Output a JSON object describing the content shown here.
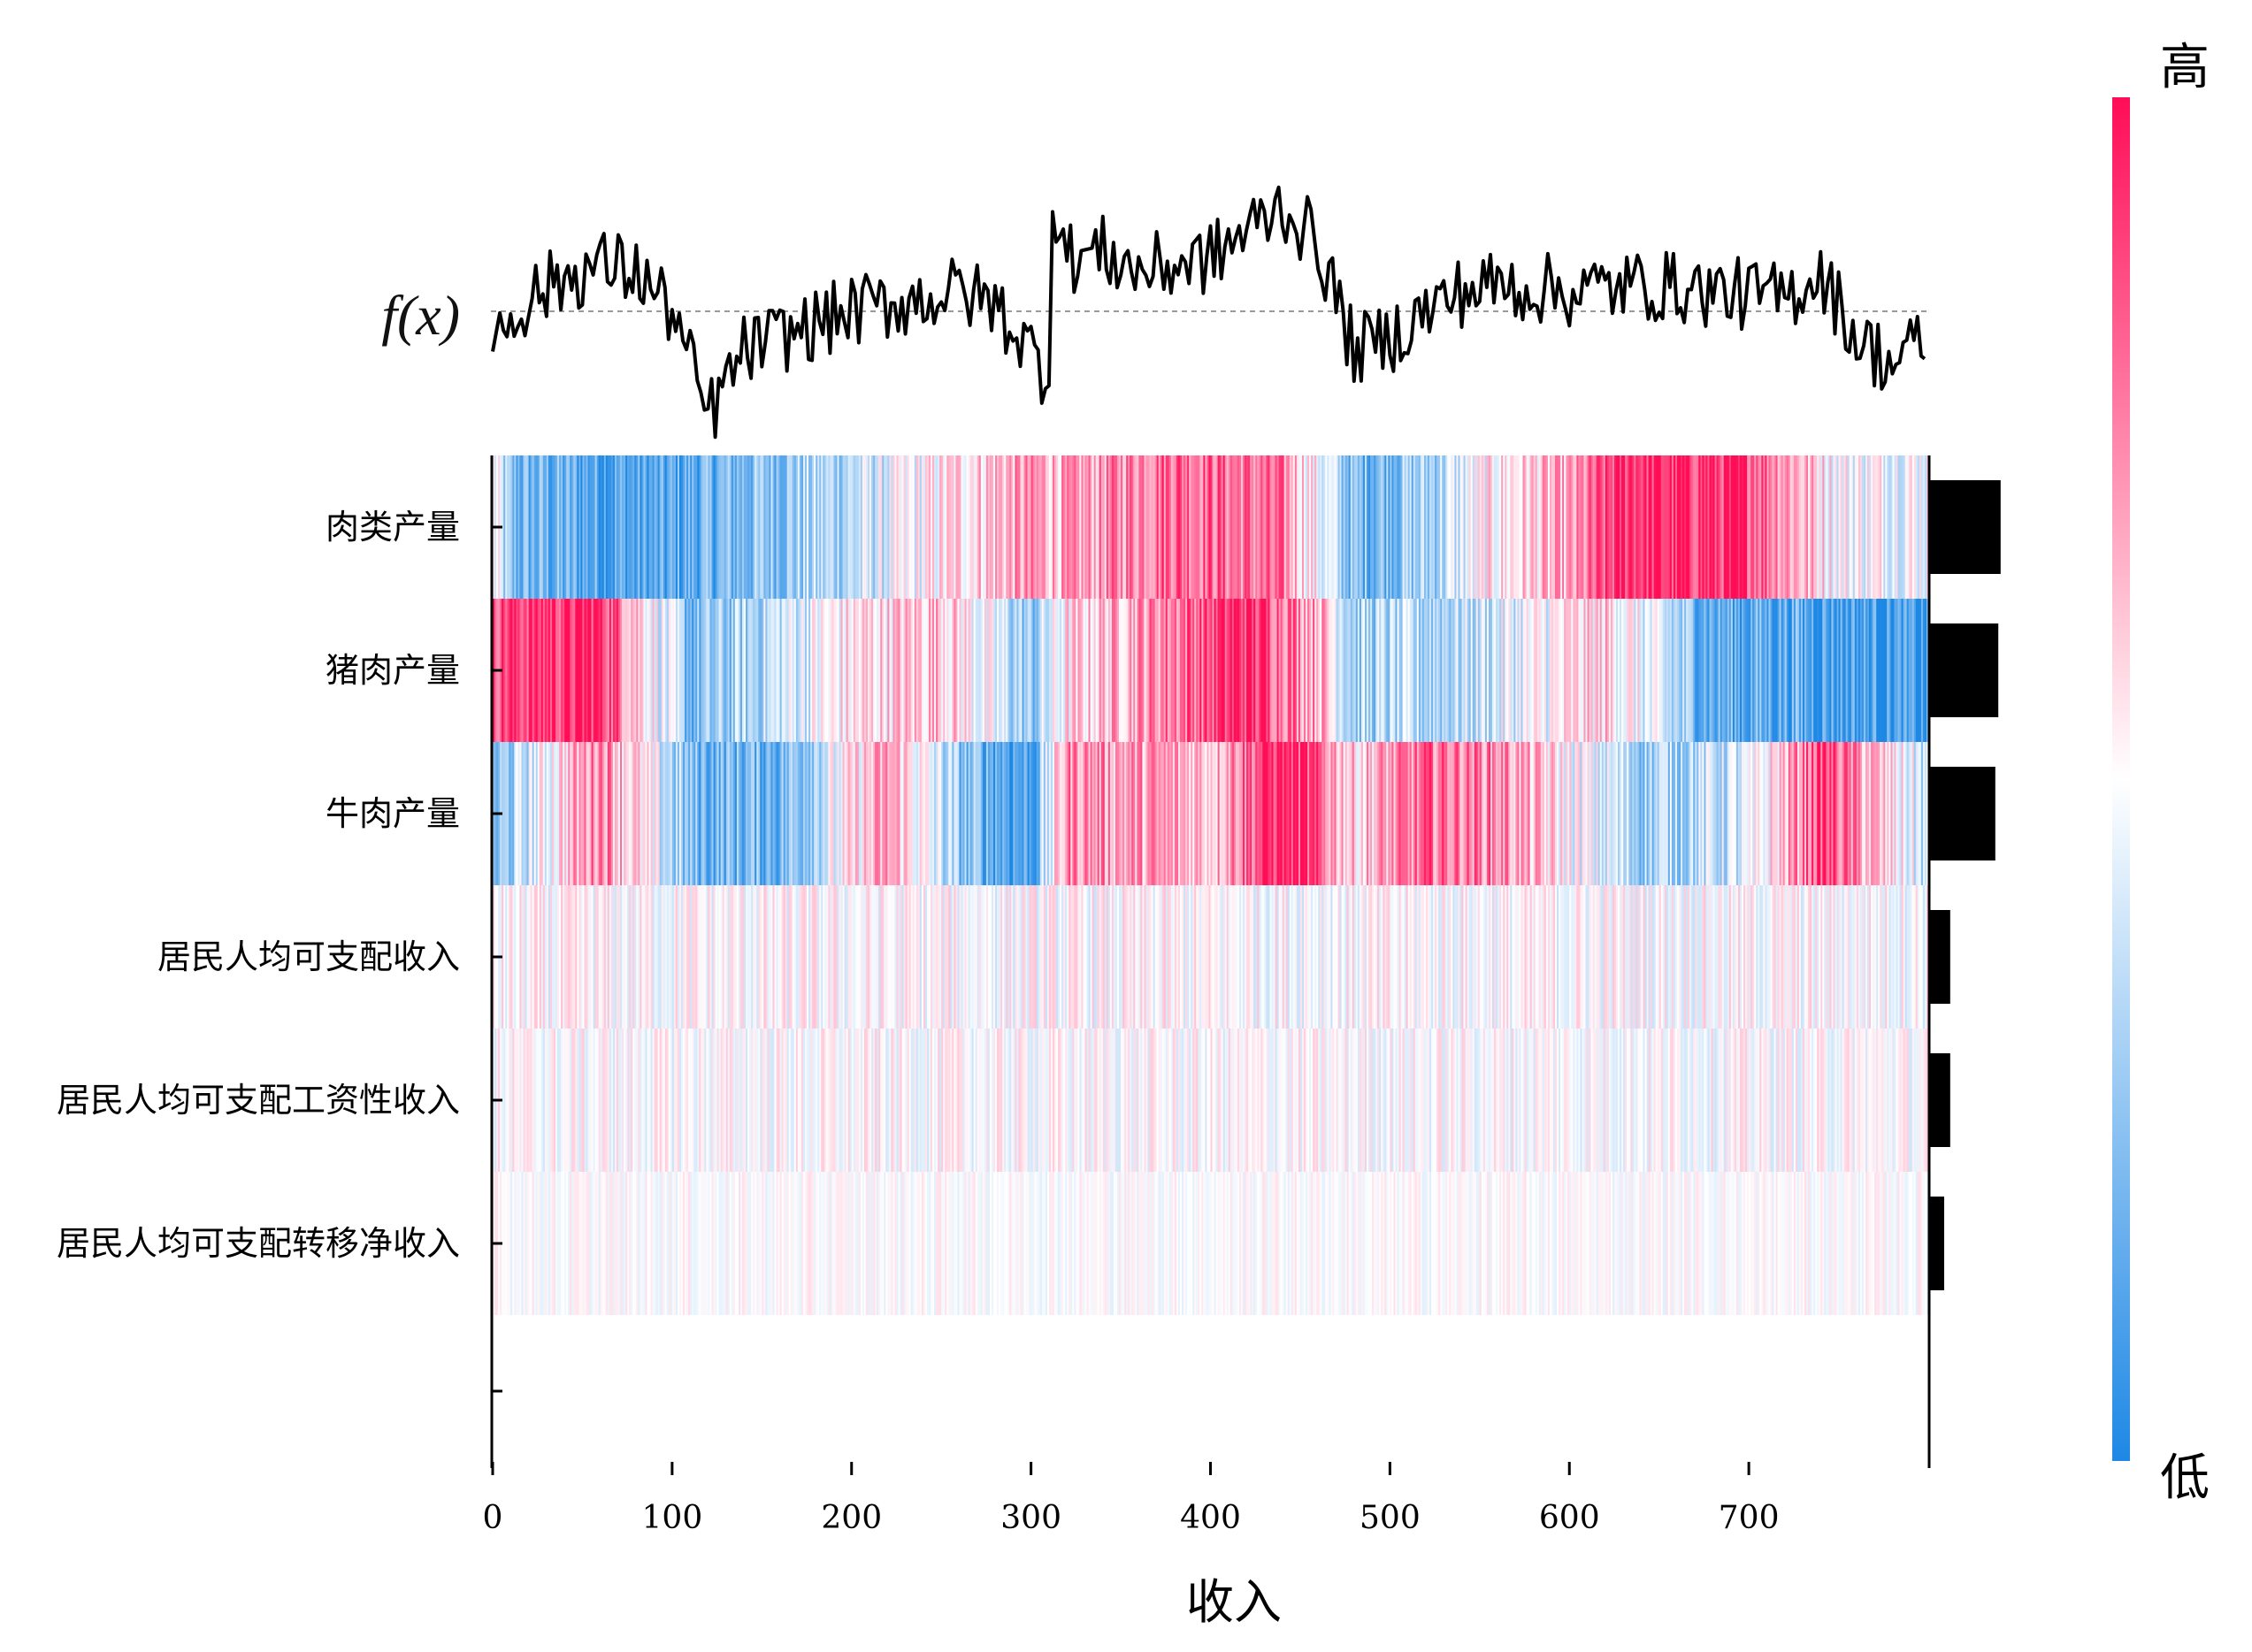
{
  "chart_data": {
    "type": "heatmap",
    "title": "",
    "xlabel": "收入",
    "ylabel": "",
    "output_label": "f(x)",
    "x_ticks": [
      0,
      100,
      200,
      300,
      400,
      500,
      600,
      700
    ],
    "xlim": [
      0,
      800
    ],
    "features": [
      "肉类产量",
      "猪肉产量",
      "牛肉产量",
      "居民人均可支配收入",
      "居民人均可支配工资性收入",
      "居民人均可支配转移净收入"
    ],
    "feature_importance": [
      0.95,
      0.92,
      0.88,
      0.28,
      0.28,
      0.2
    ],
    "colorbar": {
      "high_label": "高",
      "low_label": "低",
      "high_color": "#ff0d57",
      "mid_color": "#ffffff",
      "low_color": "#1e88e5"
    },
    "output_profile": {
      "x": [
        0,
        20,
        40,
        60,
        80,
        100,
        110,
        120,
        140,
        160,
        180,
        200,
        220,
        240,
        260,
        280,
        300,
        310,
        312,
        320,
        340,
        360,
        380,
        400,
        420,
        440,
        460,
        480,
        500,
        520,
        540,
        560,
        600,
        640,
        680,
        720,
        740,
        760,
        780,
        800
      ],
      "y": [
        -0.2,
        0.1,
        0.25,
        0.35,
        0.3,
        0.0,
        -0.4,
        -0.8,
        -0.3,
        -0.2,
        -0.1,
        0.0,
        0.05,
        0.1,
        0.15,
        0.05,
        -0.3,
        -0.5,
        0.9,
        0.4,
        0.45,
        0.3,
        0.35,
        0.4,
        0.6,
        0.8,
        0.5,
        -0.3,
        -0.2,
        0.0,
        0.15,
        0.2,
        0.15,
        0.2,
        0.15,
        0.1,
        0.3,
        -0.2,
        -0.4,
        -0.2
      ],
      "baseline": 0.0
    },
    "segment_profiles": [
      {
        "feature": "肉类产量",
        "x": [
          0,
          10,
          90,
          150,
          200,
          280,
          300,
          320,
          380,
          440,
          480,
          520,
          560,
          600,
          630,
          700,
          750,
          800
        ],
        "values": [
          0.0,
          -0.6,
          -0.8,
          -0.5,
          -0.3,
          0.3,
          0.4,
          0.3,
          0.7,
          0.5,
          -0.6,
          -0.4,
          0.1,
          0.3,
          0.9,
          0.8,
          0.0,
          0.0
        ]
      },
      {
        "feature": "猪肉产量",
        "x": [
          0,
          60,
          110,
          150,
          200,
          250,
          300,
          320,
          380,
          420,
          460,
          480,
          540,
          620,
          680,
          720,
          760,
          800
        ],
        "values": [
          0.8,
          0.9,
          -0.6,
          -0.3,
          0.1,
          0.3,
          -0.5,
          0.1,
          0.6,
          0.9,
          0.4,
          -0.4,
          -0.3,
          0.2,
          -0.7,
          -0.7,
          -0.8,
          -0.9
        ]
      },
      {
        "feature": "牛肉产量",
        "x": [
          0,
          60,
          110,
          160,
          220,
          260,
          300,
          320,
          360,
          400,
          440,
          480,
          520,
          560,
          600,
          640,
          700,
          740,
          800
        ],
        "values": [
          -0.6,
          0.6,
          -0.6,
          -0.6,
          0.4,
          -0.5,
          -0.8,
          0.5,
          0.4,
          0.3,
          1.0,
          0.2,
          0.6,
          0.5,
          0.0,
          -0.4,
          -0.2,
          0.8,
          -0.3
        ]
      },
      {
        "feature": "居民人均可支配收入",
        "x": [
          0,
          800
        ],
        "values": [
          0.12,
          0.12
        ]
      },
      {
        "feature": "居民人均可支配工资性收入",
        "x": [
          0,
          800
        ],
        "values": [
          0.1,
          0.1
        ]
      },
      {
        "feature": "居民人均可支配转移净收入",
        "x": [
          0,
          800
        ],
        "values": [
          0.05,
          0.05
        ]
      }
    ]
  }
}
